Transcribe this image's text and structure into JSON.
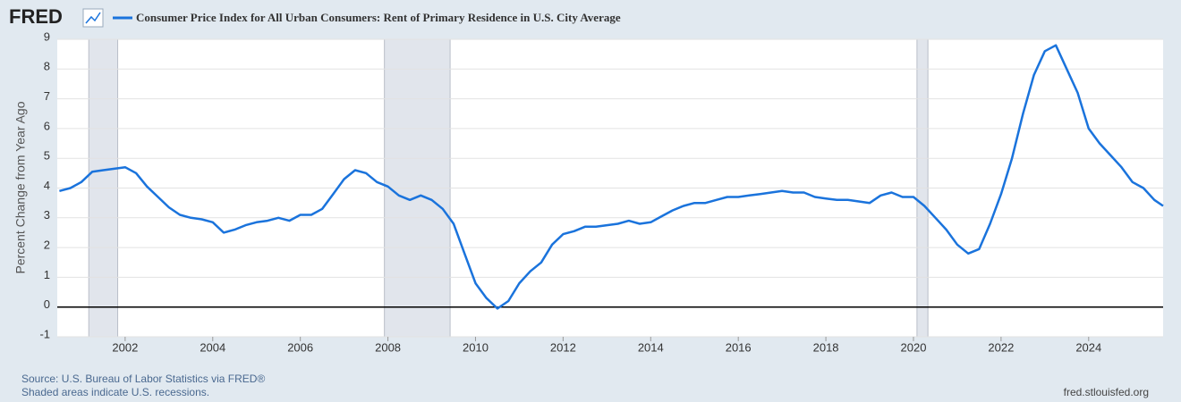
{
  "chart_data": {
    "type": "line",
    "brand": "FRED",
    "title": "Consumer Price Index for All Urban Consumers: Rent of Primary Residence in U.S. City Average",
    "ylabel": "Percent Change from Year Ago",
    "source": "Source: U.S. Bureau of Labor Statistics via FRED®",
    "note": "Shaded areas indicate U.S. recessions.",
    "site": "fred.stlouisfed.org",
    "xlim": [
      2000.45,
      2025.7
    ],
    "xticks": [
      2002,
      2004,
      2006,
      2008,
      2010,
      2012,
      2014,
      2016,
      2018,
      2020,
      2022,
      2024
    ],
    "ylim": [
      -1,
      9
    ],
    "yticks": [
      -1,
      0,
      1,
      2,
      3,
      4,
      5,
      6,
      7,
      8,
      9
    ],
    "grid": true,
    "recessions": [
      [
        2001.17,
        2001.83
      ],
      [
        2007.92,
        2009.42
      ],
      [
        2020.08,
        2020.33
      ]
    ],
    "x": [
      2000.5,
      2000.75,
      2001,
      2001.25,
      2001.5,
      2001.75,
      2002,
      2002.25,
      2002.5,
      2002.75,
      2003,
      2003.25,
      2003.5,
      2003.75,
      2004,
      2004.25,
      2004.5,
      2004.75,
      2005,
      2005.25,
      2005.5,
      2005.75,
      2006,
      2006.25,
      2006.5,
      2006.75,
      2007,
      2007.25,
      2007.5,
      2007.75,
      2008,
      2008.25,
      2008.5,
      2008.75,
      2009,
      2009.25,
      2009.5,
      2009.75,
      2010,
      2010.25,
      2010.5,
      2010.75,
      2011,
      2011.25,
      2011.5,
      2011.75,
      2012,
      2012.25,
      2012.5,
      2012.75,
      2013,
      2013.25,
      2013.5,
      2013.75,
      2014,
      2014.25,
      2014.5,
      2014.75,
      2015,
      2015.25,
      2015.5,
      2015.75,
      2016,
      2016.25,
      2016.5,
      2016.75,
      2017,
      2017.25,
      2017.5,
      2017.75,
      2018,
      2018.25,
      2018.5,
      2018.75,
      2019,
      2019.25,
      2019.5,
      2019.75,
      2020,
      2020.25,
      2020.5,
      2020.75,
      2021,
      2021.25,
      2021.5,
      2021.75,
      2022,
      2022.25,
      2022.5,
      2022.75,
      2023,
      2023.25,
      2023.5,
      2023.75,
      2024,
      2024.25,
      2024.5,
      2024.75,
      2025,
      2025.25,
      2025.5,
      2025.7
    ],
    "series": [
      {
        "name": "Consumer Price Index for All Urban Consumers: Rent of Primary Residence in U.S. City Average",
        "color": "#1a73dc",
        "values": [
          3.9,
          4.0,
          4.2,
          4.55,
          4.6,
          4.65,
          4.7,
          4.5,
          4.05,
          3.7,
          3.35,
          3.1,
          3.0,
          2.95,
          2.85,
          2.5,
          2.6,
          2.75,
          2.85,
          2.9,
          3.0,
          2.9,
          3.1,
          3.1,
          3.3,
          3.8,
          4.3,
          4.6,
          4.5,
          4.2,
          4.05,
          3.75,
          3.6,
          3.75,
          3.6,
          3.3,
          2.8,
          1.8,
          0.8,
          0.3,
          -0.05,
          0.2,
          0.8,
          1.2,
          1.5,
          2.1,
          2.45,
          2.55,
          2.7,
          2.7,
          2.75,
          2.8,
          2.9,
          2.8,
          2.85,
          3.05,
          3.25,
          3.4,
          3.5,
          3.5,
          3.6,
          3.7,
          3.7,
          3.75,
          3.8,
          3.85,
          3.9,
          3.85,
          3.85,
          3.7,
          3.65,
          3.6,
          3.6,
          3.55,
          3.5,
          3.75,
          3.85,
          3.7,
          3.7,
          3.4,
          3.0,
          2.6,
          2.1,
          1.8,
          1.95,
          2.8,
          3.8,
          5.0,
          6.5,
          7.8,
          8.6,
          8.8,
          8.0,
          7.2,
          6.0,
          5.5,
          5.1,
          4.7,
          4.2,
          4.0,
          3.6,
          3.4
        ]
      }
    ]
  }
}
